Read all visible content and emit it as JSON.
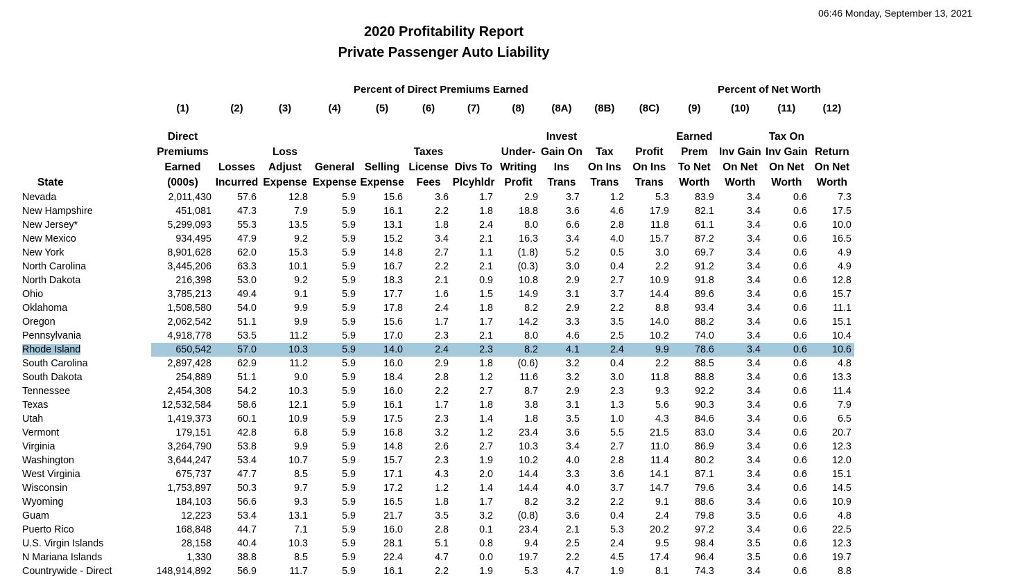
{
  "timestamp": "06:46 Monday, September 13, 2021",
  "title_line1": "2020 Profitability Report",
  "title_line2": "Private Passenger Auto Liability",
  "group_premiums": "Percent of Direct Premiums Earned",
  "group_networth": "Percent of Net Worth",
  "column_numbers": [
    "",
    "(1)",
    "(2)",
    "(3)",
    "(4)",
    "(5)",
    "(6)",
    "(7)",
    "(8)",
    "(8A)",
    "(8B)",
    "(8C)",
    "(9)",
    "(10)",
    "(11)",
    "(12)"
  ],
  "headers": [
    [
      "State"
    ],
    [
      "Direct",
      "Premiums",
      "Earned",
      "(000s)"
    ],
    [
      "Losses",
      "Incurred"
    ],
    [
      "Loss",
      "Adjust",
      "Expense"
    ],
    [
      "General",
      "Expense"
    ],
    [
      "Selling",
      "Expense"
    ],
    [
      "Taxes",
      "License",
      "Fees"
    ],
    [
      "Divs To",
      "Plcyhldr"
    ],
    [
      "Under-",
      "Writing",
      "Profit"
    ],
    [
      "Invest",
      "Gain On",
      "Ins",
      "Trans"
    ],
    [
      "Tax",
      "On Ins",
      "Trans"
    ],
    [
      "Profit",
      "On Ins",
      "Trans"
    ],
    [
      "Earned",
      "Prem",
      "To Net",
      "Worth"
    ],
    [
      "Inv Gain",
      "On Net",
      "Worth"
    ],
    [
      "Tax On",
      "Inv Gain",
      "On Net",
      "Worth"
    ],
    [
      "Return",
      "On Net",
      "Worth"
    ]
  ],
  "highlighted_row": "Rhode Island",
  "rows": [
    [
      "Nevada",
      "2,011,430",
      "57.6",
      "12.8",
      "5.9",
      "15.6",
      "3.6",
      "1.7",
      "2.9",
      "3.7",
      "1.2",
      "5.3",
      "83.9",
      "3.4",
      "0.6",
      "7.3"
    ],
    [
      "New Hampshire",
      "451,081",
      "47.3",
      "7.9",
      "5.9",
      "16.1",
      "2.2",
      "1.8",
      "18.8",
      "3.6",
      "4.6",
      "17.9",
      "82.1",
      "3.4",
      "0.6",
      "17.5"
    ],
    [
      "New Jersey*",
      "5,299,093",
      "55.3",
      "13.5",
      "5.9",
      "13.1",
      "1.8",
      "2.4",
      "8.0",
      "6.6",
      "2.8",
      "11.8",
      "61.1",
      "3.4",
      "0.6",
      "10.0"
    ],
    [
      "New Mexico",
      "934,495",
      "47.9",
      "9.2",
      "5.9",
      "15.2",
      "3.4",
      "2.1",
      "16.3",
      "3.4",
      "4.0",
      "15.7",
      "87.2",
      "3.4",
      "0.6",
      "16.5"
    ],
    [
      "New York",
      "8,901,628",
      "62.0",
      "15.3",
      "5.9",
      "14.8",
      "2.7",
      "1.1",
      "(1.8)",
      "5.2",
      "0.5",
      "3.0",
      "69.7",
      "3.4",
      "0.6",
      "4.9"
    ],
    [
      "North Carolina",
      "3,445,206",
      "63.3",
      "10.1",
      "5.9",
      "16.7",
      "2.2",
      "2.1",
      "(0.3)",
      "3.0",
      "0.4",
      "2.2",
      "91.2",
      "3.4",
      "0.6",
      "4.9"
    ],
    [
      "North Dakota",
      "216,398",
      "53.0",
      "9.2",
      "5.9",
      "18.3",
      "2.1",
      "0.9",
      "10.8",
      "2.9",
      "2.7",
      "10.9",
      "91.8",
      "3.4",
      "0.6",
      "12.8"
    ],
    [
      "Ohio",
      "3,785,213",
      "49.4",
      "9.1",
      "5.9",
      "17.7",
      "1.6",
      "1.5",
      "14.9",
      "3.1",
      "3.7",
      "14.4",
      "89.6",
      "3.4",
      "0.6",
      "15.7"
    ],
    [
      "Oklahoma",
      "1,508,580",
      "54.0",
      "9.9",
      "5.9",
      "17.8",
      "2.4",
      "1.8",
      "8.2",
      "2.9",
      "2.2",
      "8.8",
      "93.4",
      "3.4",
      "0.6",
      "11.1"
    ],
    [
      "Oregon",
      "2,062,542",
      "51.1",
      "9.9",
      "5.9",
      "15.6",
      "1.7",
      "1.7",
      "14.2",
      "3.3",
      "3.5",
      "14.0",
      "88.2",
      "3.4",
      "0.6",
      "15.1"
    ],
    [
      "Pennsylvania",
      "4,918,778",
      "53.5",
      "11.2",
      "5.9",
      "17.0",
      "2.3",
      "2.1",
      "8.0",
      "4.6",
      "2.5",
      "10.2",
      "74.0",
      "3.4",
      "0.6",
      "10.4"
    ],
    [
      "Rhode Island",
      "650,542",
      "57.0",
      "10.3",
      "5.9",
      "14.0",
      "2.4",
      "2.3",
      "8.2",
      "4.1",
      "2.4",
      "9.9",
      "78.6",
      "3.4",
      "0.6",
      "10.6"
    ],
    [
      "South Carolina",
      "2,897,428",
      "62.9",
      "11.2",
      "5.9",
      "16.0",
      "2.9",
      "1.8",
      "(0.6)",
      "3.2",
      "0.4",
      "2.2",
      "88.5",
      "3.4",
      "0.6",
      "4.8"
    ],
    [
      "South Dakota",
      "254,889",
      "51.1",
      "9.0",
      "5.9",
      "18.4",
      "2.8",
      "1.2",
      "11.6",
      "3.2",
      "3.0",
      "11.8",
      "88.8",
      "3.4",
      "0.6",
      "13.3"
    ],
    [
      "Tennessee",
      "2,454,308",
      "54.2",
      "10.3",
      "5.9",
      "16.0",
      "2.2",
      "2.7",
      "8.7",
      "2.9",
      "2.3",
      "9.3",
      "92.2",
      "3.4",
      "0.6",
      "11.4"
    ],
    [
      "Texas",
      "12,532,584",
      "58.6",
      "12.1",
      "5.9",
      "16.1",
      "1.7",
      "1.8",
      "3.8",
      "3.1",
      "1.3",
      "5.6",
      "90.3",
      "3.4",
      "0.6",
      "7.9"
    ],
    [
      "Utah",
      "1,419,373",
      "60.1",
      "10.9",
      "5.9",
      "17.5",
      "2.3",
      "1.4",
      "1.8",
      "3.5",
      "1.0",
      "4.3",
      "84.6",
      "3.4",
      "0.6",
      "6.5"
    ],
    [
      "Vermont",
      "179,151",
      "42.8",
      "6.8",
      "5.9",
      "16.8",
      "3.2",
      "1.2",
      "23.4",
      "3.6",
      "5.5",
      "21.5",
      "83.0",
      "3.4",
      "0.6",
      "20.7"
    ],
    [
      "Virginia",
      "3,264,790",
      "53.8",
      "9.9",
      "5.9",
      "14.8",
      "2.6",
      "2.7",
      "10.3",
      "3.4",
      "2.7",
      "11.0",
      "86.9",
      "3.4",
      "0.6",
      "12.3"
    ],
    [
      "Washington",
      "3,644,247",
      "53.4",
      "10.7",
      "5.9",
      "15.7",
      "2.3",
      "1.9",
      "10.2",
      "4.0",
      "2.8",
      "11.4",
      "80.2",
      "3.4",
      "0.6",
      "12.0"
    ],
    [
      "West Virginia",
      "675,737",
      "47.7",
      "8.5",
      "5.9",
      "17.1",
      "4.3",
      "2.0",
      "14.4",
      "3.3",
      "3.6",
      "14.1",
      "87.1",
      "3.4",
      "0.6",
      "15.1"
    ],
    [
      "Wisconsin",
      "1,753,897",
      "50.3",
      "9.7",
      "5.9",
      "17.2",
      "1.2",
      "1.4",
      "14.4",
      "4.0",
      "3.7",
      "14.7",
      "79.6",
      "3.4",
      "0.6",
      "14.5"
    ],
    [
      "Wyoming",
      "184,103",
      "56.6",
      "9.3",
      "5.9",
      "16.5",
      "1.8",
      "1.7",
      "8.2",
      "3.2",
      "2.2",
      "9.1",
      "88.6",
      "3.4",
      "0.6",
      "10.9"
    ],
    [
      "Guam",
      "12,223",
      "53.4",
      "13.1",
      "5.9",
      "21.7",
      "3.5",
      "3.2",
      "(0.8)",
      "3.6",
      "0.4",
      "2.4",
      "79.8",
      "3.5",
      "0.6",
      "4.8"
    ],
    [
      "Puerto Rico",
      "168,848",
      "44.7",
      "7.1",
      "5.9",
      "16.0",
      "2.8",
      "0.1",
      "23.4",
      "2.1",
      "5.3",
      "20.2",
      "97.2",
      "3.4",
      "0.6",
      "22.5"
    ],
    [
      "U.S. Virgin Islands",
      "28,158",
      "40.4",
      "10.3",
      "5.9",
      "28.1",
      "5.1",
      "0.8",
      "9.4",
      "2.5",
      "2.4",
      "9.5",
      "98.4",
      "3.5",
      "0.6",
      "12.3"
    ],
    [
      "N Mariana Islands",
      "1,330",
      "38.8",
      "8.5",
      "5.9",
      "22.4",
      "4.7",
      "0.0",
      "19.7",
      "2.2",
      "4.5",
      "17.4",
      "96.4",
      "3.5",
      "0.6",
      "19.7"
    ],
    [
      "Countrywide - Direct",
      "148,914,892",
      "56.9",
      "11.7",
      "5.9",
      "16.1",
      "2.2",
      "1.9",
      "5.3",
      "4.7",
      "1.9",
      "8.1",
      "74.3",
      "3.4",
      "0.6",
      "8.8"
    ]
  ]
}
